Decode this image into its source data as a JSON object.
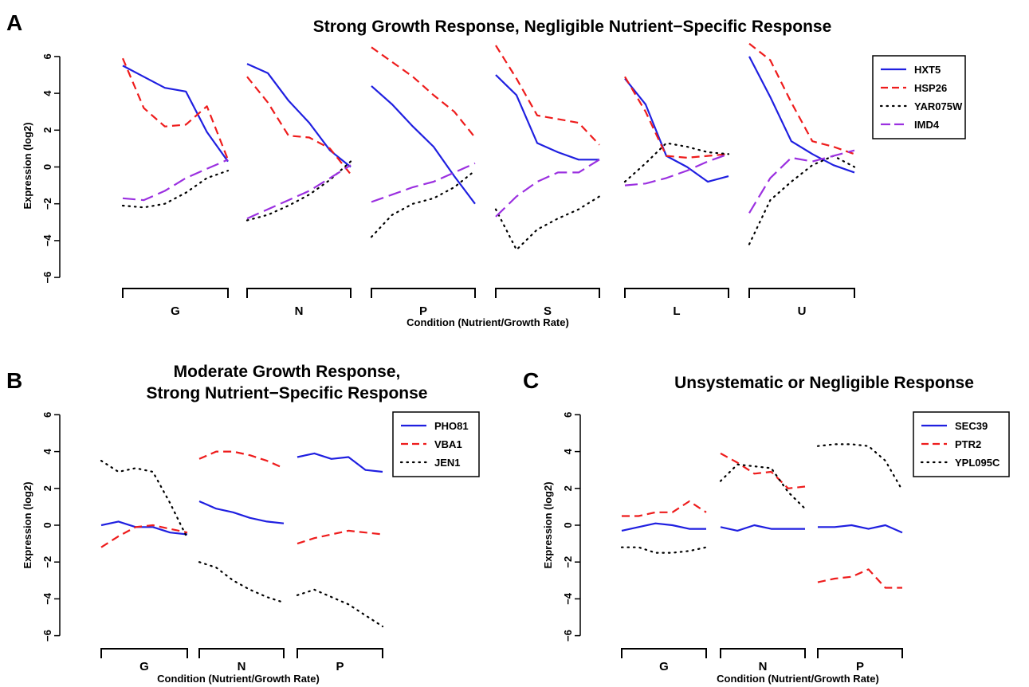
{
  "colors": {
    "blue": "#1f1fe0",
    "red": "#ee1c1c",
    "black": "#000000",
    "purple": "#9b30e0"
  },
  "chart_data": [
    {
      "panel": "A",
      "type": "line",
      "title": "Strong Growth Response, Negligible Nutrient−Specific Response",
      "xlabel": "Condition (Nutrient/Growth Rate)",
      "ylabel": "Expression (log2)",
      "ylim": [
        -6,
        6
      ],
      "yticks": [
        "6",
        "4",
        "2",
        "0",
        "−2",
        "−4",
        "−6"
      ],
      "categories": [
        "G",
        "N",
        "P",
        "S",
        "L",
        "U"
      ],
      "legend_position": "top-right",
      "series": [
        {
          "name": "HXT5",
          "color": "blue",
          "dash": "solid",
          "values": [
            [
              5.5,
              4.9,
              4.3,
              4.1,
              1.9,
              0.3
            ],
            [
              5.6,
              5.1,
              3.6,
              2.4,
              0.9,
              0.0
            ],
            [
              4.4,
              3.4,
              2.2,
              1.1,
              -0.5,
              -2.0
            ],
            [
              5.0,
              3.9,
              1.3,
              0.8,
              0.4,
              0.4
            ],
            [
              4.8,
              3.4,
              0.6,
              0.0,
              -0.8,
              -0.5
            ],
            [
              6.0,
              3.8,
              1.4,
              0.7,
              0.1,
              -0.3
            ]
          ]
        },
        {
          "name": "HSP26",
          "color": "red",
          "dash": "dashed",
          "values": [
            [
              5.9,
              3.2,
              2.2,
              2.3,
              3.3,
              0.4
            ],
            [
              4.9,
              3.5,
              1.7,
              1.6,
              1.0,
              -0.4
            ],
            [
              6.5,
              5.7,
              4.9,
              3.9,
              3.0,
              1.6
            ],
            [
              6.6,
              4.8,
              2.8,
              2.6,
              2.4,
              1.2
            ],
            [
              4.9,
              3.0,
              0.6,
              0.5,
              0.6,
              0.7
            ],
            [
              6.7,
              5.8,
              3.5,
              1.4,
              1.1,
              0.7
            ]
          ]
        },
        {
          "name": "YAR075W",
          "color": "black",
          "dash": "dotted",
          "values": [
            [
              -2.1,
              -2.2,
              -2.0,
              -1.4,
              -0.6,
              -0.2
            ],
            [
              -2.9,
              -2.6,
              -2.1,
              -1.5,
              -0.7,
              0.3
            ],
            [
              -3.8,
              -2.6,
              -2.0,
              -1.7,
              -1.1,
              -0.2
            ],
            [
              -2.3,
              -4.5,
              -3.4,
              -2.8,
              -2.3,
              -1.6
            ],
            [
              -0.8,
              0.2,
              1.3,
              1.1,
              0.8,
              0.7
            ],
            [
              -4.2,
              -1.8,
              -0.8,
              0.1,
              0.6,
              0.0
            ]
          ]
        },
        {
          "name": "IMD4",
          "color": "purple",
          "dash": "longdash",
          "values": [
            [
              -1.7,
              -1.8,
              -1.3,
              -0.6,
              -0.1,
              0.4
            ],
            [
              -2.8,
              -2.3,
              -1.8,
              -1.3,
              -0.6,
              0.1
            ],
            [
              -1.9,
              -1.5,
              -1.1,
              -0.8,
              -0.3,
              0.2
            ],
            [
              -2.7,
              -1.6,
              -0.8,
              -0.3,
              -0.3,
              0.4
            ],
            [
              -1.0,
              -0.9,
              -0.6,
              -0.2,
              0.3,
              0.7
            ],
            [
              -2.5,
              -0.6,
              0.5,
              0.3,
              0.6,
              0.9
            ]
          ]
        }
      ]
    },
    {
      "panel": "B",
      "type": "line",
      "title": "Moderate Growth Response,",
      "subtitle": "Strong Nutrient−Specific Response",
      "xlabel": "Condition (Nutrient/Growth Rate)",
      "ylabel": "Expression (log2)",
      "ylim": [
        -6,
        6
      ],
      "yticks": [
        "6",
        "4",
        "2",
        "0",
        "−2",
        "−4",
        "−6"
      ],
      "categories": [
        "G",
        "N",
        "P"
      ],
      "legend_position": "top-right",
      "series": [
        {
          "name": "PHO81",
          "color": "blue",
          "dash": "solid",
          "values": [
            [
              0.0,
              0.2,
              -0.1,
              -0.1,
              -0.4,
              -0.5
            ],
            [
              1.3,
              0.9,
              0.7,
              0.4,
              0.2,
              0.1
            ],
            [
              3.7,
              3.9,
              3.6,
              3.7,
              3.0,
              2.9
            ]
          ]
        },
        {
          "name": "VBA1",
          "color": "red",
          "dash": "dashed",
          "values": [
            [
              -1.2,
              -0.6,
              -0.1,
              0.0,
              -0.2,
              -0.4
            ],
            [
              3.6,
              4.0,
              4.0,
              3.8,
              3.5,
              3.1
            ],
            [
              -1.0,
              -0.7,
              -0.5,
              -0.3,
              -0.4,
              -0.5
            ]
          ]
        },
        {
          "name": "JEN1",
          "color": "black",
          "dash": "dotted",
          "values": [
            [
              3.5,
              2.9,
              3.1,
              2.9,
              1.2,
              -0.7
            ],
            [
              -2.0,
              -2.3,
              -3.0,
              -3.5,
              -3.9,
              -4.2
            ],
            [
              -3.8,
              -3.5,
              -3.9,
              -4.3,
              -4.9,
              -5.5
            ]
          ]
        }
      ]
    },
    {
      "panel": "C",
      "type": "line",
      "title": "Unsystematic or Negligible Response",
      "xlabel": "Condition (Nutrient/Growth Rate)",
      "ylabel": "Expression (log2)",
      "ylim": [
        -6,
        6
      ],
      "yticks": [
        "6",
        "4",
        "2",
        "0",
        "−2",
        "−4",
        "−6"
      ],
      "categories": [
        "G",
        "N",
        "P"
      ],
      "legend_position": "top-right",
      "series": [
        {
          "name": "SEC39",
          "color": "blue",
          "dash": "solid",
          "values": [
            [
              -0.3,
              -0.1,
              0.1,
              0.0,
              -0.2,
              -0.2
            ],
            [
              -0.1,
              -0.3,
              0.0,
              -0.2,
              -0.2,
              -0.2
            ],
            [
              -0.1,
              -0.1,
              0.0,
              -0.2,
              0.0,
              -0.4
            ]
          ]
        },
        {
          "name": "PTR2",
          "color": "red",
          "dash": "dashed",
          "values": [
            [
              0.5,
              0.5,
              0.7,
              0.7,
              1.3,
              0.7
            ],
            [
              3.9,
              3.4,
              2.8,
              2.9,
              2.0,
              2.1
            ],
            [
              -3.1,
              -2.9,
              -2.8,
              -2.4,
              -3.4,
              -3.4
            ]
          ]
        },
        {
          "name": "YPL095C",
          "color": "black",
          "dash": "dotted",
          "values": [
            [
              -1.2,
              -1.2,
              -1.5,
              -1.5,
              -1.4,
              -1.2
            ],
            [
              2.4,
              3.3,
              3.2,
              3.1,
              1.8,
              0.9
            ],
            [
              4.3,
              4.4,
              4.4,
              4.3,
              3.5,
              1.9
            ]
          ]
        }
      ]
    }
  ]
}
